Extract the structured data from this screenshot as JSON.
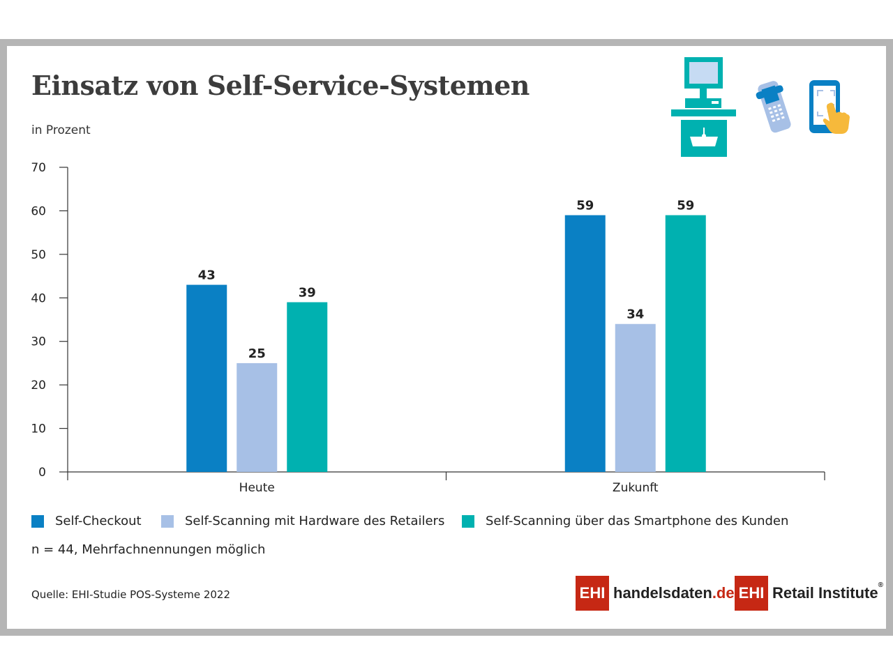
{
  "title": "Einsatz von Self-Service-Systemen",
  "subtitle": "in Prozent",
  "chart_data": {
    "type": "bar",
    "categories": [
      "Heute",
      "Zukunft"
    ],
    "series": [
      {
        "name": "Self-Checkout",
        "values": [
          43,
          59
        ],
        "color": "#0a80c4"
      },
      {
        "name": "Self-Scanning mit Hardware des Retailers",
        "values": [
          25,
          34
        ],
        "color": "#a7c0e6"
      },
      {
        "name": "Self-Scanning über das Smartphone des Kunden",
        "values": [
          39,
          59
        ],
        "color": "#00b1b0"
      }
    ],
    "ylim": [
      0,
      70
    ],
    "yticks": [
      0,
      10,
      20,
      30,
      40,
      50,
      60,
      70
    ],
    "grid": false,
    "legend_position": "bottom"
  },
  "note": "n = 44, Mehrfachnennungen möglich",
  "source": "Quelle: EHI-Studie POS-Systeme 2022",
  "logos": {
    "left_box": "EHI",
    "left_text_main": "handelsdaten",
    "left_text_suffix": ".de",
    "right_box": "EHI",
    "right_text": "Retail Institute",
    "right_reg": "®"
  },
  "icons": [
    "self-checkout-kiosk-icon",
    "handheld-scanner-icon",
    "smartphone-scan-icon"
  ]
}
